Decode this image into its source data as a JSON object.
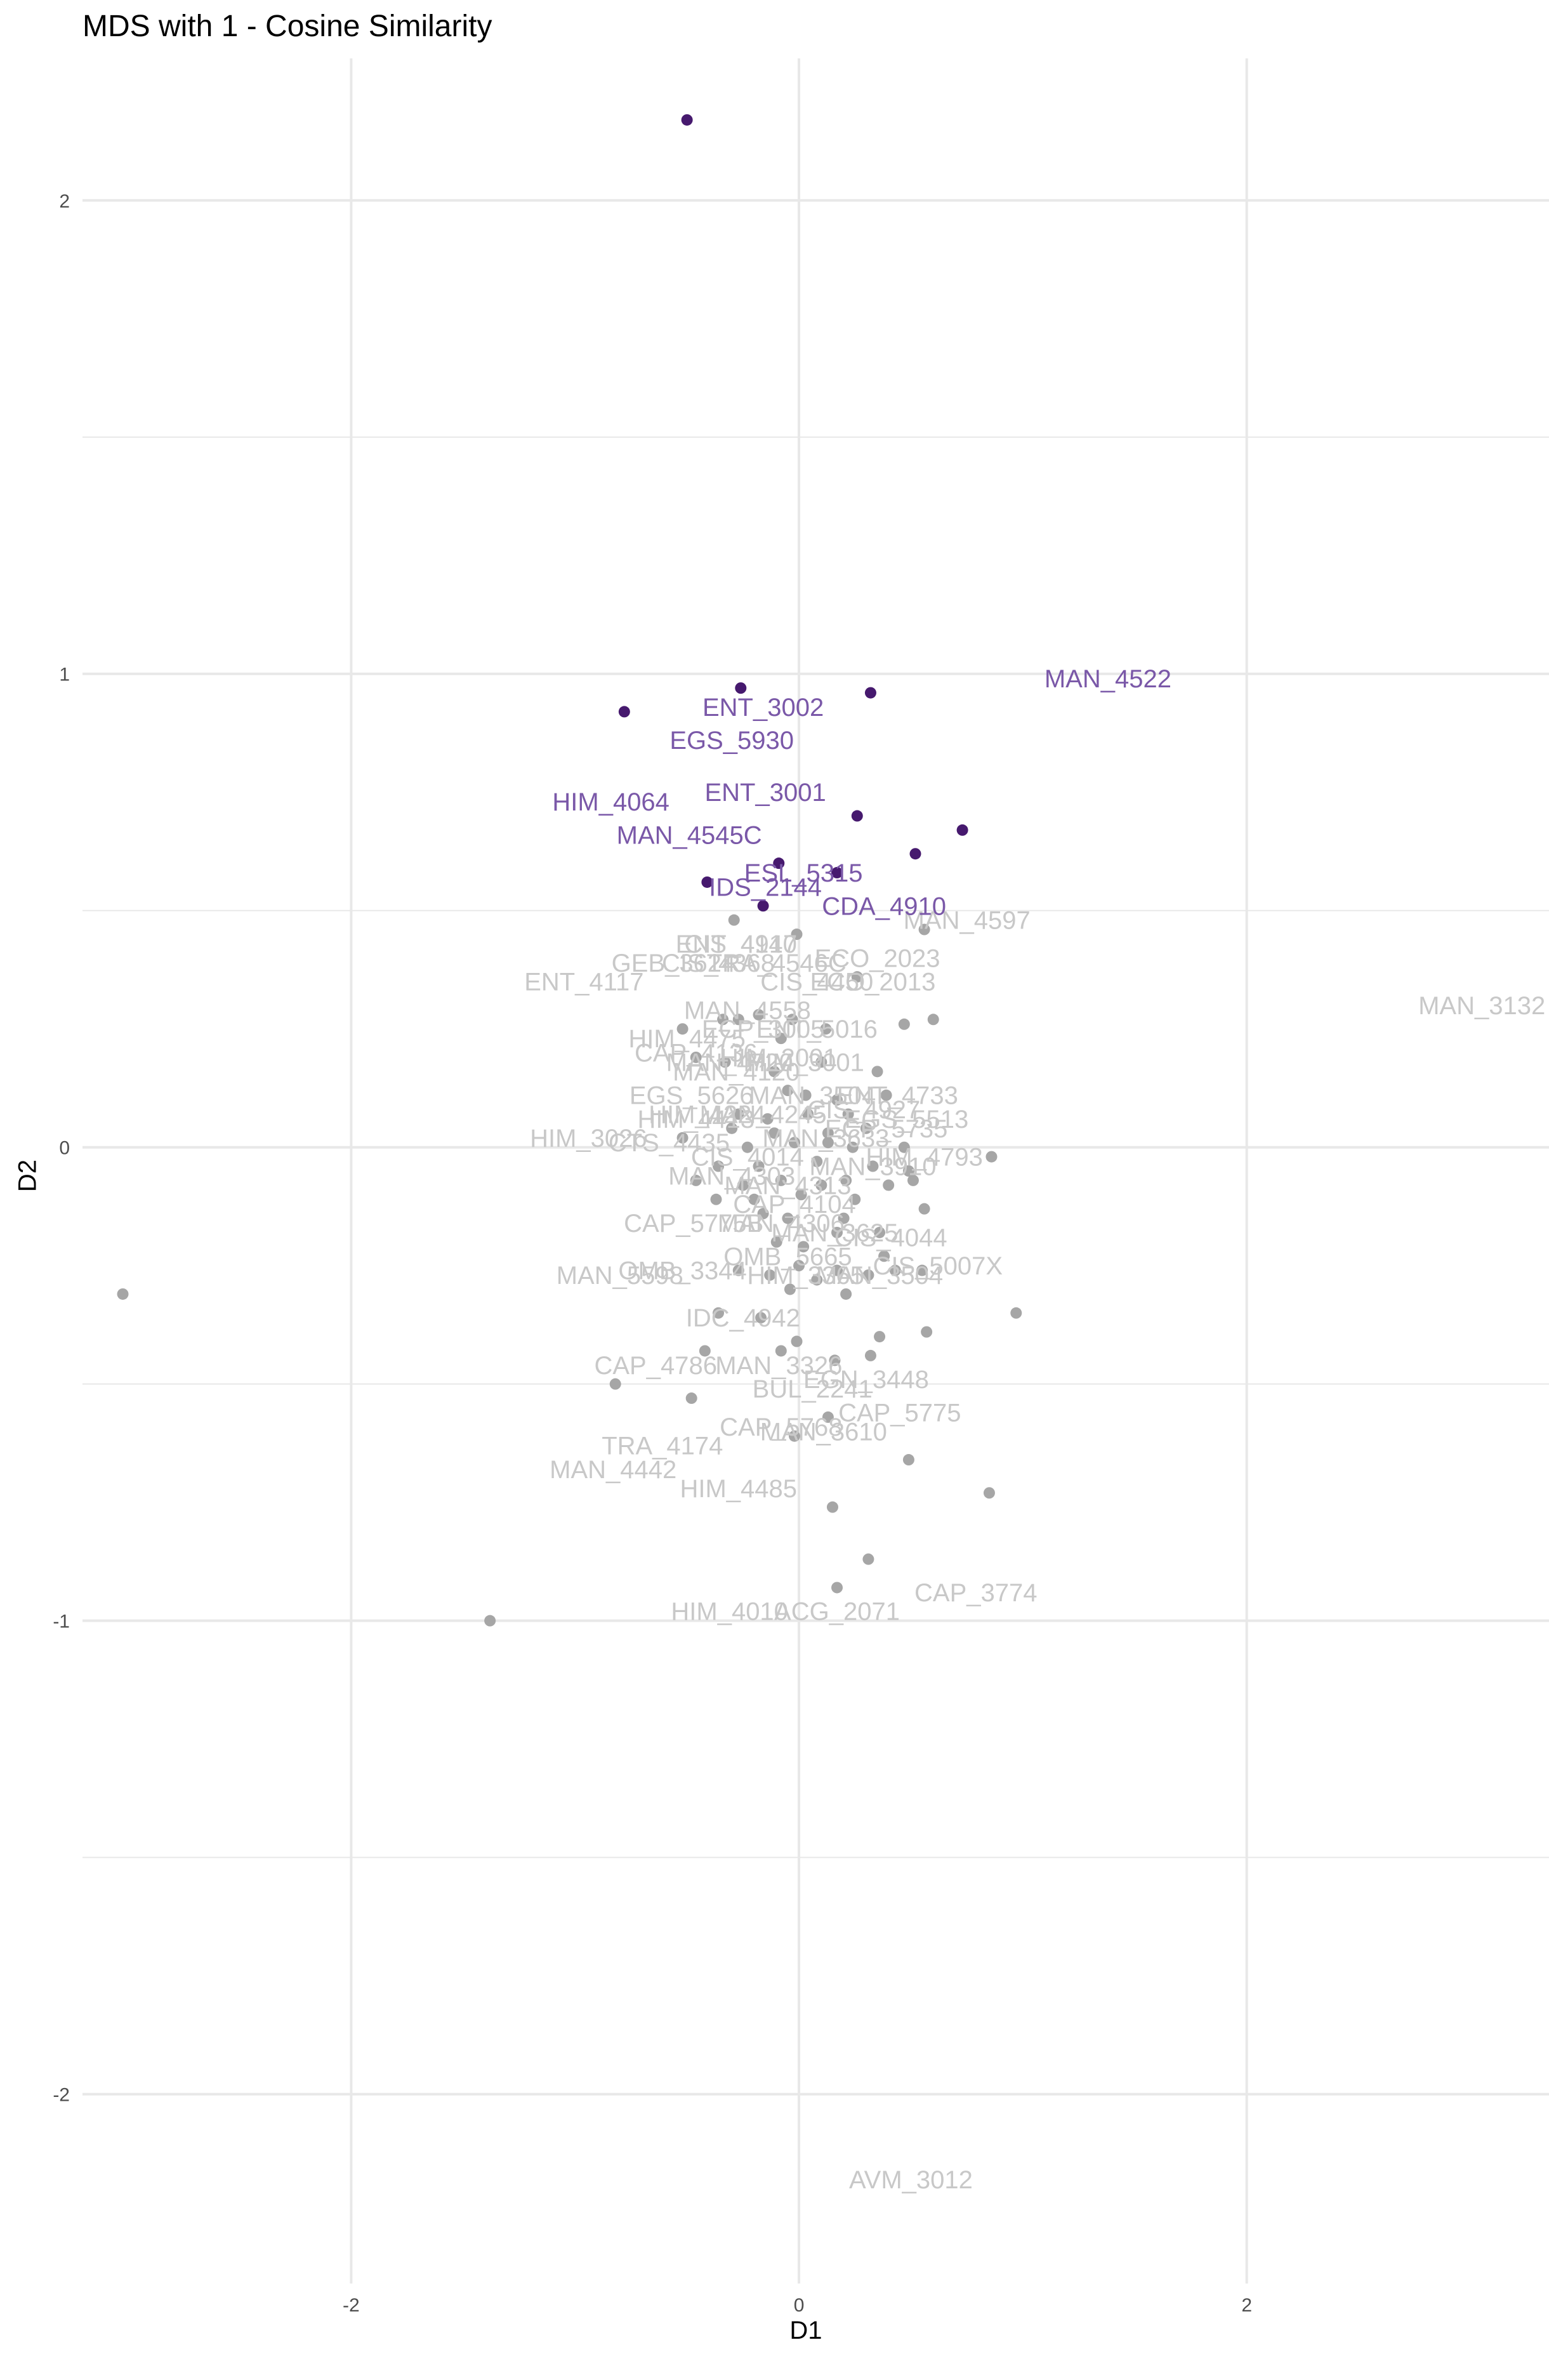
{
  "chart_data": {
    "type": "scatter",
    "title": "MDS with 1 - Cosine Similarity",
    "xlabel": "D1",
    "ylabel": "D2",
    "xlim": [
      -3.2,
      3.35
    ],
    "ylim": [
      -2.4,
      2.3
    ],
    "xticks": [
      -2,
      0,
      2
    ],
    "yticks": [
      -2,
      -1,
      0,
      1,
      2
    ],
    "xtick_labels": [
      "-2",
      "0",
      "2"
    ],
    "ytick_labels": [
      "-2",
      "-1",
      "0",
      "1",
      "2"
    ],
    "grid": true,
    "colors": {
      "highlight_point": "#46196e",
      "highlight_label": "#7a58a8",
      "other_point": "#a6a6a6",
      "other_label": "#c8c8c8",
      "grid": "#e8e8e8"
    },
    "points": [
      {
        "x": -0.5,
        "y": 2.17,
        "g": "h"
      },
      {
        "x": -0.78,
        "y": 0.92,
        "g": "h"
      },
      {
        "x": -0.26,
        "y": 0.97,
        "g": "h"
      },
      {
        "x": 0.32,
        "y": 0.96,
        "g": "h"
      },
      {
        "x": 0.26,
        "y": 0.7,
        "g": "h"
      },
      {
        "x": 0.73,
        "y": 0.67,
        "g": "h"
      },
      {
        "x": 0.52,
        "y": 0.62,
        "g": "h"
      },
      {
        "x": -0.09,
        "y": 0.6,
        "g": "h"
      },
      {
        "x": 0.17,
        "y": 0.58,
        "g": "h"
      },
      {
        "x": -0.41,
        "y": 0.56,
        "g": "h"
      },
      {
        "x": -0.16,
        "y": 0.51,
        "g": "h"
      },
      {
        "x": -3.02,
        "y": -0.31,
        "g": "o"
      },
      {
        "x": -1.38,
        "y": -1.0,
        "g": "o"
      },
      {
        "x": -0.82,
        "y": -0.5,
        "g": "o"
      },
      {
        "x": -0.48,
        "y": -0.53,
        "g": "o"
      },
      {
        "x": -0.42,
        "y": -0.43,
        "g": "o"
      },
      {
        "x": -0.36,
        "y": -0.35,
        "g": "o"
      },
      {
        "x": -0.17,
        "y": -0.36,
        "g": "o"
      },
      {
        "x": -0.08,
        "y": -0.43,
        "g": "o"
      },
      {
        "x": -0.01,
        "y": -0.41,
        "g": "o"
      },
      {
        "x": 0.16,
        "y": -0.45,
        "g": "o"
      },
      {
        "x": 0.32,
        "y": -0.44,
        "g": "o"
      },
      {
        "x": 0.36,
        "y": -0.4,
        "g": "o"
      },
      {
        "x": 0.57,
        "y": -0.39,
        "g": "o"
      },
      {
        "x": 0.97,
        "y": -0.35,
        "g": "o"
      },
      {
        "x": 0.13,
        "y": -0.57,
        "g": "o"
      },
      {
        "x": -0.02,
        "y": -0.61,
        "g": "o"
      },
      {
        "x": 0.49,
        "y": -0.66,
        "g": "o"
      },
      {
        "x": 0.85,
        "y": -0.73,
        "g": "o"
      },
      {
        "x": 0.15,
        "y": -0.76,
        "g": "o"
      },
      {
        "x": 0.31,
        "y": -0.87,
        "g": "o"
      },
      {
        "x": 0.17,
        "y": -0.93,
        "g": "o"
      },
      {
        "x": -0.29,
        "y": 0.48,
        "g": "o"
      },
      {
        "x": -0.01,
        "y": 0.45,
        "g": "o"
      },
      {
        "x": 0.56,
        "y": 0.46,
        "g": "o"
      },
      {
        "x": 0.26,
        "y": 0.36,
        "g": "o"
      },
      {
        "x": 0.6,
        "y": 0.27,
        "g": "o"
      },
      {
        "x": -0.52,
        "y": 0.25,
        "g": "o"
      },
      {
        "x": -0.34,
        "y": 0.27,
        "g": "o"
      },
      {
        "x": -0.27,
        "y": 0.27,
        "g": "o"
      },
      {
        "x": -0.18,
        "y": 0.28,
        "g": "o"
      },
      {
        "x": -0.03,
        "y": 0.27,
        "g": "o"
      },
      {
        "x": -0.08,
        "y": 0.23,
        "g": "o"
      },
      {
        "x": 0.12,
        "y": 0.25,
        "g": "o"
      },
      {
        "x": 0.47,
        "y": 0.26,
        "g": "o"
      },
      {
        "x": -0.46,
        "y": 0.19,
        "g": "o"
      },
      {
        "x": -0.33,
        "y": 0.18,
        "g": "o"
      },
      {
        "x": -0.11,
        "y": 0.16,
        "g": "o"
      },
      {
        "x": 0.1,
        "y": 0.18,
        "g": "o"
      },
      {
        "x": 0.35,
        "y": 0.16,
        "g": "o"
      },
      {
        "x": -0.05,
        "y": 0.12,
        "g": "o"
      },
      {
        "x": 0.03,
        "y": 0.11,
        "g": "o"
      },
      {
        "x": 0.17,
        "y": 0.1,
        "g": "o"
      },
      {
        "x": 0.39,
        "y": 0.11,
        "g": "o"
      },
      {
        "x": -0.27,
        "y": 0.07,
        "g": "o"
      },
      {
        "x": -0.14,
        "y": 0.06,
        "g": "o"
      },
      {
        "x": 0.04,
        "y": 0.07,
        "g": "o"
      },
      {
        "x": 0.22,
        "y": 0.07,
        "g": "o"
      },
      {
        "x": -0.3,
        "y": 0.04,
        "g": "o"
      },
      {
        "x": -0.11,
        "y": 0.03,
        "g": "o"
      },
      {
        "x": 0.13,
        "y": 0.03,
        "g": "o"
      },
      {
        "x": 0.3,
        "y": 0.04,
        "g": "o"
      },
      {
        "x": -0.52,
        "y": 0.02,
        "g": "o"
      },
      {
        "x": -0.23,
        "y": 0.0,
        "g": "o"
      },
      {
        "x": -0.02,
        "y": 0.01,
        "g": "o"
      },
      {
        "x": 0.13,
        "y": 0.01,
        "g": "o"
      },
      {
        "x": 0.24,
        "y": 0.0,
        "g": "o"
      },
      {
        "x": 0.47,
        "y": 0.0,
        "g": "o"
      },
      {
        "x": 0.86,
        "y": -0.02,
        "g": "o"
      },
      {
        "x": -0.36,
        "y": -0.04,
        "g": "o"
      },
      {
        "x": -0.18,
        "y": -0.04,
        "g": "o"
      },
      {
        "x": 0.08,
        "y": -0.03,
        "g": "o"
      },
      {
        "x": 0.33,
        "y": -0.04,
        "g": "o"
      },
      {
        "x": 0.49,
        "y": -0.05,
        "g": "o"
      },
      {
        "x": -0.46,
        "y": -0.07,
        "g": "o"
      },
      {
        "x": -0.25,
        "y": -0.08,
        "g": "o"
      },
      {
        "x": -0.08,
        "y": -0.07,
        "g": "o"
      },
      {
        "x": 0.1,
        "y": -0.08,
        "g": "o"
      },
      {
        "x": 0.21,
        "y": -0.07,
        "g": "o"
      },
      {
        "x": 0.4,
        "y": -0.08,
        "g": "o"
      },
      {
        "x": 0.51,
        "y": -0.07,
        "g": "o"
      },
      {
        "x": -0.37,
        "y": -0.11,
        "g": "o"
      },
      {
        "x": -0.2,
        "y": -0.11,
        "g": "o"
      },
      {
        "x": 0.01,
        "y": -0.1,
        "g": "o"
      },
      {
        "x": 0.25,
        "y": -0.11,
        "g": "o"
      },
      {
        "x": -0.16,
        "y": -0.14,
        "g": "o"
      },
      {
        "x": -0.05,
        "y": -0.15,
        "g": "o"
      },
      {
        "x": 0.2,
        "y": -0.15,
        "g": "o"
      },
      {
        "x": 0.56,
        "y": -0.13,
        "g": "o"
      },
      {
        "x": -0.1,
        "y": -0.2,
        "g": "o"
      },
      {
        "x": 0.02,
        "y": -0.21,
        "g": "o"
      },
      {
        "x": 0.17,
        "y": -0.18,
        "g": "o"
      },
      {
        "x": 0.36,
        "y": -0.18,
        "g": "o"
      },
      {
        "x": 0.38,
        "y": -0.23,
        "g": "o"
      },
      {
        "x": -0.27,
        "y": -0.26,
        "g": "o"
      },
      {
        "x": -0.13,
        "y": -0.27,
        "g": "o"
      },
      {
        "x": 0.0,
        "y": -0.25,
        "g": "o"
      },
      {
        "x": 0.17,
        "y": -0.26,
        "g": "o"
      },
      {
        "x": 0.31,
        "y": -0.27,
        "g": "o"
      },
      {
        "x": 0.43,
        "y": -0.26,
        "g": "o"
      },
      {
        "x": 0.55,
        "y": -0.26,
        "g": "o"
      },
      {
        "x": -0.04,
        "y": -0.3,
        "g": "o"
      },
      {
        "x": 0.08,
        "y": -0.28,
        "g": "o"
      },
      {
        "x": 0.21,
        "y": -0.31,
        "g": "o"
      }
    ],
    "labels": [
      {
        "text": "MAN_4522",
        "x": 1.38,
        "y": 0.99,
        "g": "h"
      },
      {
        "text": "ENT_3002",
        "x": -0.16,
        "y": 0.93,
        "g": "h"
      },
      {
        "text": "EGS_5930",
        "x": -0.3,
        "y": 0.86,
        "g": "h"
      },
      {
        "text": "ENT_3001",
        "x": -0.15,
        "y": 0.75,
        "g": "h"
      },
      {
        "text": "HIM_4064",
        "x": -0.84,
        "y": 0.73,
        "g": "h"
      },
      {
        "text": "MAN_4545C",
        "x": -0.49,
        "y": 0.66,
        "g": "h"
      },
      {
        "text": "ESL_5315",
        "x": 0.02,
        "y": 0.58,
        "g": "h"
      },
      {
        "text": "IDS_2144",
        "x": -0.15,
        "y": 0.55,
        "g": "h"
      },
      {
        "text": "CDA_4910",
        "x": 0.38,
        "y": 0.51,
        "g": "h"
      },
      {
        "text": "MAN_4597",
        "x": 0.75,
        "y": 0.48,
        "g": "o"
      },
      {
        "text": "CIS_4917",
        "x": -0.26,
        "y": 0.43,
        "g": "o"
      },
      {
        "text": "ENT_4140",
        "x": -0.28,
        "y": 0.43,
        "g": "o"
      },
      {
        "text": "GEB_3624",
        "x": -0.56,
        "y": 0.39,
        "g": "o"
      },
      {
        "text": "CIS_4368",
        "x": -0.36,
        "y": 0.39,
        "g": "o"
      },
      {
        "text": "TRA_4546C",
        "x": -0.1,
        "y": 0.39,
        "g": "o"
      },
      {
        "text": "ECO_2023",
        "x": 0.35,
        "y": 0.4,
        "g": "o"
      },
      {
        "text": "ENT_4117",
        "x": -0.96,
        "y": 0.35,
        "g": "o"
      },
      {
        "text": "CIS_4450",
        "x": 0.08,
        "y": 0.35,
        "g": "o"
      },
      {
        "text": "ECO_2013",
        "x": 0.33,
        "y": 0.35,
        "g": "o"
      },
      {
        "text": "MAN_3132",
        "x": 3.05,
        "y": 0.3,
        "g": "o"
      },
      {
        "text": "MAN_4558",
        "x": -0.23,
        "y": 0.29,
        "g": "o"
      },
      {
        "text": "ECP_3005",
        "x": -0.16,
        "y": 0.25,
        "g": "o"
      },
      {
        "text": "HIM_4475",
        "x": -0.5,
        "y": 0.23,
        "g": "o"
      },
      {
        "text": "ENT_5016",
        "x": 0.08,
        "y": 0.25,
        "g": "o"
      },
      {
        "text": "CAP_4136",
        "x": -0.46,
        "y": 0.2,
        "g": "o"
      },
      {
        "text": "MAN_4720",
        "x": -0.31,
        "y": 0.18,
        "g": "o"
      },
      {
        "text": "HIM_2001",
        "x": -0.09,
        "y": 0.19,
        "g": "o"
      },
      {
        "text": "HIM_3001",
        "x": 0.03,
        "y": 0.18,
        "g": "o"
      },
      {
        "text": "MAN_4120",
        "x": -0.28,
        "y": 0.16,
        "g": "o"
      },
      {
        "text": "EGS_5626",
        "x": -0.48,
        "y": 0.11,
        "g": "o"
      },
      {
        "text": "MAN_3504",
        "x": 0.06,
        "y": 0.11,
        "g": "o"
      },
      {
        "text": "ENT_4733",
        "x": 0.44,
        "y": 0.11,
        "g": "o"
      },
      {
        "text": "HIM_4224",
        "x": -0.41,
        "y": 0.07,
        "g": "o"
      },
      {
        "text": "MAN_4245",
        "x": -0.16,
        "y": 0.07,
        "g": "o"
      },
      {
        "text": "CIS_4927",
        "x": 0.29,
        "y": 0.08,
        "g": "o"
      },
      {
        "text": "HIM_4413",
        "x": -0.46,
        "y": 0.06,
        "g": "o"
      },
      {
        "text": "EGS_5513",
        "x": 0.48,
        "y": 0.06,
        "g": "o"
      },
      {
        "text": "ECP_5735",
        "x": 0.39,
        "y": 0.04,
        "g": "o"
      },
      {
        "text": "HIM_3026",
        "x": -0.94,
        "y": 0.02,
        "g": "o"
      },
      {
        "text": "CTS_4435",
        "x": -0.58,
        "y": 0.01,
        "g": "o"
      },
      {
        "text": "MAN_3633",
        "x": 0.12,
        "y": 0.02,
        "g": "o"
      },
      {
        "text": "HIM_4793",
        "x": 0.56,
        "y": -0.02,
        "g": "o"
      },
      {
        "text": "CIS_4014",
        "x": -0.23,
        "y": -0.02,
        "g": "o"
      },
      {
        "text": "MAN_3910",
        "x": 0.33,
        "y": -0.04,
        "g": "o"
      },
      {
        "text": "MAN_4303",
        "x": -0.3,
        "y": -0.06,
        "g": "o"
      },
      {
        "text": "MAN_4313",
        "x": -0.05,
        "y": -0.08,
        "g": "o"
      },
      {
        "text": "CAP_4104",
        "x": -0.02,
        "y": -0.12,
        "g": "o"
      },
      {
        "text": "CAP_5775B",
        "x": -0.47,
        "y": -0.16,
        "g": "o"
      },
      {
        "text": "MAN_4306",
        "x": -0.08,
        "y": -0.16,
        "g": "o"
      },
      {
        "text": "MAN_3625",
        "x": 0.16,
        "y": -0.18,
        "g": "o"
      },
      {
        "text": "CIS_4044",
        "x": 0.41,
        "y": -0.19,
        "g": "o"
      },
      {
        "text": "OMB_5665",
        "x": -0.05,
        "y": -0.23,
        "g": "o"
      },
      {
        "text": "CIS_5007X",
        "x": 0.62,
        "y": -0.25,
        "g": "o"
      },
      {
        "text": "MAN_5598",
        "x": -0.8,
        "y": -0.27,
        "g": "o"
      },
      {
        "text": "OMB_3344",
        "x": -0.52,
        "y": -0.26,
        "g": "o"
      },
      {
        "text": "HIM_3365",
        "x": 0.03,
        "y": -0.27,
        "g": "o"
      },
      {
        "text": "MAN_3504",
        "x": 0.36,
        "y": -0.27,
        "g": "o"
      },
      {
        "text": "IDC_4942",
        "x": -0.25,
        "y": -0.36,
        "g": "o"
      },
      {
        "text": "CAP_4786",
        "x": -0.64,
        "y": -0.46,
        "g": "o"
      },
      {
        "text": "MAN_3326",
        "x": -0.09,
        "y": -0.46,
        "g": "o"
      },
      {
        "text": "EGN_3448",
        "x": 0.3,
        "y": -0.49,
        "g": "o"
      },
      {
        "text": "BUL_2241",
        "x": 0.06,
        "y": -0.51,
        "g": "o"
      },
      {
        "text": "CAP_5775",
        "x": 0.45,
        "y": -0.56,
        "g": "o"
      },
      {
        "text": "CAP_5768",
        "x": -0.08,
        "y": -0.59,
        "g": "o"
      },
      {
        "text": "MAN_3610",
        "x": 0.11,
        "y": -0.6,
        "g": "o"
      },
      {
        "text": "TRA_4174",
        "x": -0.61,
        "y": -0.63,
        "g": "o"
      },
      {
        "text": "MAN_4442",
        "x": -0.83,
        "y": -0.68,
        "g": "o"
      },
      {
        "text": "HIM_4485",
        "x": -0.27,
        "y": -0.72,
        "g": "o"
      },
      {
        "text": "CAP_3774",
        "x": 0.79,
        "y": -0.94,
        "g": "o"
      },
      {
        "text": "HIM_4010",
        "x": -0.31,
        "y": -0.98,
        "g": "o"
      },
      {
        "text": "ACG_2071",
        "x": 0.17,
        "y": -0.98,
        "g": "o"
      },
      {
        "text": "AVM_3012",
        "x": 0.5,
        "y": -2.18,
        "g": "o"
      }
    ]
  }
}
